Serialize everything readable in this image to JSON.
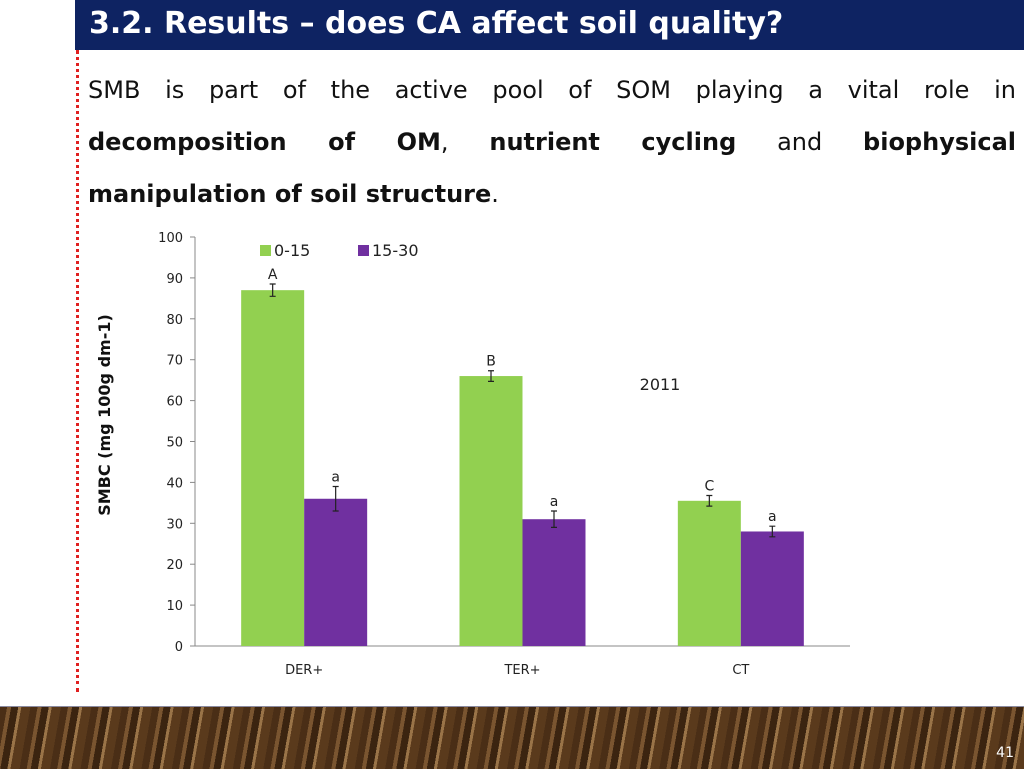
{
  "slide": {
    "title": "3.2. Results – does CA affect soil quality?",
    "paragraph": {
      "line1": "SMB is part of the active pool of SOM playing a vital role in",
      "b1": "decomposition of OM",
      "t1": ",",
      "b2": "nutrient cycling",
      "t2": "and",
      "b3": "biophysical",
      "b4": "manipulation of soil structure",
      "t3": "."
    },
    "page_number": "41"
  },
  "chart_data": {
    "type": "bar",
    "title": "",
    "annotation": "2011",
    "ylabel": "SMBC (mg 100g dm-1)",
    "ylabel_main": "SMBC (mg 100g dm",
    "ylabel_sup": "-1",
    "ylabel_end": ")",
    "xlabel": "",
    "ylim": [
      0,
      100
    ],
    "yticks": [
      0,
      10,
      20,
      30,
      40,
      50,
      60,
      70,
      80,
      90,
      100
    ],
    "categories": [
      "DER+",
      "TER+",
      "CT"
    ],
    "legend_position": "top-left",
    "series": [
      {
        "name": "0-15",
        "color": "#92d050",
        "values": [
          87,
          66,
          35.5
        ],
        "errors": [
          1.5,
          1.3,
          1.3
        ],
        "letters": [
          "A",
          "B",
          "C"
        ]
      },
      {
        "name": "15-30",
        "color": "#7030a0",
        "values": [
          36,
          31,
          28
        ],
        "errors": [
          3,
          2,
          1.3
        ],
        "letters": [
          "a",
          "a",
          "a"
        ]
      }
    ]
  }
}
